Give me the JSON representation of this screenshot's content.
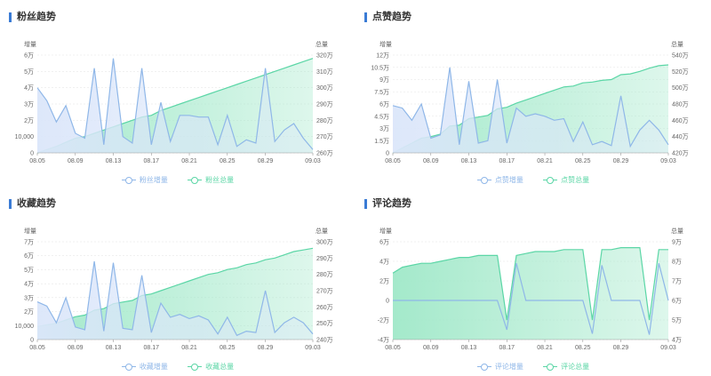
{
  "chart_data": [
    {
      "type": "area",
      "title": "粉丝趋势",
      "ylabel_left": "增量",
      "ylabel_right": "总量",
      "x": [
        "08.05",
        "08.06",
        "08.07",
        "08.08",
        "08.09",
        "08.10",
        "08.11",
        "08.12",
        "08.13",
        "08.14",
        "08.15",
        "08.16",
        "08.17",
        "08.18",
        "08.19",
        "08.20",
        "08.21",
        "08.22",
        "08.23",
        "08.24",
        "08.25",
        "08.26",
        "08.27",
        "08.28",
        "08.29",
        "08.30",
        "08.31",
        "09.01",
        "09.02",
        "09.03"
      ],
      "x_ticks": [
        "08.05",
        "08.09",
        "08.13",
        "08.17",
        "08.21",
        "08.25",
        "08.29",
        "09.03"
      ],
      "y_left_ticks": [
        "0",
        "10,000",
        "2万",
        "3万",
        "4万",
        "5万",
        "6万"
      ],
      "y_left_range": [
        0,
        60000
      ],
      "y_right_ticks": [
        "260万",
        "270万",
        "280万",
        "290万",
        "300万",
        "310万",
        "320万"
      ],
      "y_right_range": [
        2600000,
        3200000
      ],
      "series": [
        {
          "name": "粉丝增量",
          "axis": "left",
          "color": "#8fb7e8",
          "fill": "#dbe6fa",
          "values": [
            40000,
            32000,
            19000,
            29000,
            12000,
            9000,
            52000,
            5000,
            58000,
            10000,
            6000,
            52000,
            5000,
            31000,
            7000,
            23000,
            23000,
            22000,
            22000,
            5000,
            23000,
            4000,
            8000,
            6000,
            52000,
            7000,
            14000,
            18000,
            9000,
            2000
          ]
        },
        {
          "name": "粉丝总量",
          "axis": "right",
          "color": "#5bd6a6",
          "fill": "#9fe8c8",
          "values": [
            2600000,
            2620000,
            2640000,
            2665000,
            2690000,
            2700000,
            2720000,
            2740000,
            2760000,
            2780000,
            2800000,
            2820000,
            2830000,
            2860000,
            2880000,
            2900000,
            2920000,
            2940000,
            2960000,
            2980000,
            3000000,
            3020000,
            3040000,
            3060000,
            3080000,
            3100000,
            3120000,
            3140000,
            3160000,
            3180000
          ]
        }
      ],
      "legend": [
        "粉丝增量",
        "粉丝总量"
      ]
    },
    {
      "type": "area",
      "title": "点赞趋势",
      "ylabel_left": "增量",
      "ylabel_right": "总量",
      "x": [
        "08.05",
        "08.06",
        "08.07",
        "08.08",
        "08.09",
        "08.10",
        "08.11",
        "08.12",
        "08.13",
        "08.14",
        "08.15",
        "08.16",
        "08.17",
        "08.18",
        "08.19",
        "08.20",
        "08.21",
        "08.22",
        "08.23",
        "08.24",
        "08.25",
        "08.26",
        "08.27",
        "08.28",
        "08.29",
        "08.30",
        "08.31",
        "09.01",
        "09.02",
        "09.03"
      ],
      "x_ticks": [
        "08.05",
        "08.09",
        "08.13",
        "08.17",
        "08.21",
        "08.25",
        "08.29",
        "09.03"
      ],
      "y_left_ticks": [
        "0",
        "1.5万",
        "3万",
        "4.5万",
        "6万",
        "7.5万",
        "9万",
        "10.5万",
        "12万"
      ],
      "y_left_range": [
        0,
        120000
      ],
      "y_right_ticks": [
        "420万",
        "440万",
        "460万",
        "480万",
        "500万",
        "520万",
        "540万"
      ],
      "y_right_range": [
        4200000,
        5400000
      ],
      "series": [
        {
          "name": "点赞增量",
          "axis": "left",
          "color": "#8fb7e8",
          "fill": "#dbe6fa",
          "values": [
            58000,
            55000,
            40000,
            60000,
            18000,
            22000,
            105000,
            10000,
            88000,
            12000,
            15000,
            90000,
            12000,
            55000,
            45000,
            48000,
            45000,
            40000,
            42000,
            14000,
            38000,
            10000,
            14000,
            9000,
            70000,
            8000,
            28000,
            40000,
            28000,
            10000
          ]
        },
        {
          "name": "点赞总量",
          "axis": "right",
          "color": "#5bd6a6",
          "fill": "#9fe8c8",
          "values": [
            4200000,
            4260000,
            4320000,
            4380000,
            4400000,
            4430000,
            4530000,
            4540000,
            4620000,
            4640000,
            4660000,
            4740000,
            4760000,
            4810000,
            4850000,
            4890000,
            4930000,
            4970000,
            5010000,
            5020000,
            5060000,
            5070000,
            5090000,
            5100000,
            5160000,
            5170000,
            5200000,
            5240000,
            5270000,
            5280000
          ]
        }
      ],
      "legend": [
        "点赞增量",
        "点赞总量"
      ]
    },
    {
      "type": "area",
      "title": "收藏趋势",
      "ylabel_left": "增量",
      "ylabel_right": "总量",
      "x": [
        "08.05",
        "08.06",
        "08.07",
        "08.08",
        "08.09",
        "08.10",
        "08.11",
        "08.12",
        "08.13",
        "08.14",
        "08.15",
        "08.16",
        "08.17",
        "08.18",
        "08.19",
        "08.20",
        "08.21",
        "08.22",
        "08.23",
        "08.24",
        "08.25",
        "08.26",
        "08.27",
        "08.28",
        "08.29",
        "08.30",
        "08.31",
        "09.01",
        "09.02",
        "09.03"
      ],
      "x_ticks": [
        "08.05",
        "08.09",
        "08.13",
        "08.17",
        "08.21",
        "08.25",
        "08.29",
        "09.03"
      ],
      "y_left_ticks": [
        "0",
        "10,000",
        "2万",
        "3万",
        "4万",
        "5万",
        "6万",
        "7万"
      ],
      "y_left_range": [
        0,
        70000
      ],
      "y_right_ticks": [
        "240万",
        "250万",
        "260万",
        "270万",
        "280万",
        "290万",
        "300万"
      ],
      "y_right_range": [
        2400000,
        3000000
      ],
      "series": [
        {
          "name": "收藏增量",
          "axis": "left",
          "color": "#8fb7e8",
          "fill": "#dbe6fa",
          "values": [
            27000,
            24000,
            12000,
            30000,
            9000,
            7000,
            56000,
            6000,
            55000,
            8000,
            7000,
            46000,
            5000,
            26000,
            16000,
            18000,
            15000,
            17000,
            14000,
            4000,
            16000,
            3000,
            6000,
            5000,
            35000,
            5000,
            12000,
            16000,
            12000,
            4000
          ]
        },
        {
          "name": "收藏总量",
          "axis": "right",
          "color": "#5bd6a6",
          "fill": "#9fe8c8",
          "values": [
            2480000,
            2490000,
            2500000,
            2520000,
            2540000,
            2550000,
            2580000,
            2590000,
            2620000,
            2630000,
            2640000,
            2670000,
            2680000,
            2700000,
            2720000,
            2740000,
            2760000,
            2780000,
            2800000,
            2810000,
            2830000,
            2840000,
            2860000,
            2870000,
            2890000,
            2900000,
            2920000,
            2940000,
            2950000,
            2960000
          ]
        }
      ],
      "legend": [
        "收藏增量",
        "收藏总量"
      ]
    },
    {
      "type": "area",
      "title": "评论趋势",
      "ylabel_left": "增量",
      "ylabel_right": "总量",
      "x": [
        "08.05",
        "08.06",
        "08.07",
        "08.08",
        "08.09",
        "08.10",
        "08.11",
        "08.12",
        "08.13",
        "08.14",
        "08.15",
        "08.16",
        "08.17",
        "08.18",
        "08.19",
        "08.20",
        "08.21",
        "08.22",
        "08.23",
        "08.24",
        "08.25",
        "08.26",
        "08.27",
        "08.28",
        "08.29",
        "08.30",
        "08.31",
        "09.01",
        "09.02",
        "09.03"
      ],
      "x_ticks": [
        "08.05",
        "08.09",
        "08.13",
        "08.17",
        "08.21",
        "08.25",
        "08.29",
        "09.03"
      ],
      "y_left_ticks": [
        "-4万",
        "-2万",
        "0",
        "2万",
        "4万",
        "6万"
      ],
      "y_left_range": [
        -40000,
        60000
      ],
      "y_right_ticks": [
        "4万",
        "5万",
        "6万",
        "7万",
        "8万",
        "9万"
      ],
      "y_right_range": [
        40000,
        90000
      ],
      "series": [
        {
          "name": "评论增量",
          "axis": "left",
          "color": "#8fb7e8",
          "fill": "none",
          "values": [
            0,
            0,
            0,
            0,
            0,
            0,
            0,
            0,
            0,
            0,
            0,
            0,
            -30000,
            38000,
            0,
            0,
            0,
            0,
            0,
            0,
            0,
            -34000,
            36000,
            0,
            0,
            0,
            0,
            -35000,
            38000,
            0
          ]
        },
        {
          "name": "评论总量",
          "axis": "right",
          "color": "#5bd6a6",
          "fill": "#9fe8c8",
          "values": [
            74000,
            77000,
            78000,
            79000,
            79000,
            80000,
            81000,
            82000,
            82000,
            83000,
            83000,
            83000,
            50000,
            83000,
            84000,
            85000,
            85000,
            85000,
            86000,
            86000,
            86000,
            50000,
            86000,
            86000,
            87000,
            87000,
            87000,
            50000,
            86000,
            86000
          ]
        }
      ],
      "legend": [
        "评论增量",
        "评论总量"
      ]
    }
  ]
}
